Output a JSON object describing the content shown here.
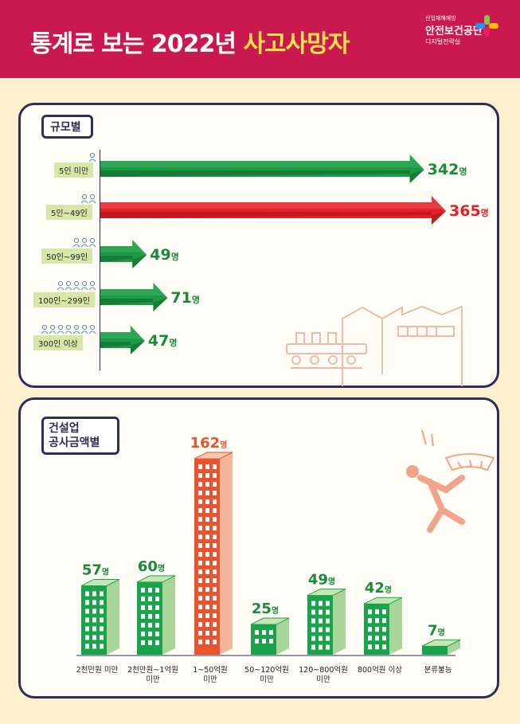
{
  "header": {
    "title_main": "통계로 보는 2022년 ",
    "title_highlight": "사고사망자",
    "logo_top": "산업재해예방",
    "logo_name": "안전보건공단",
    "logo_sub": "디지털전략실"
  },
  "colors": {
    "header": "#c9194e",
    "green": "#1e9a46",
    "red": "#e42128",
    "orange": "#e9542f",
    "navy": "#2b2f5a"
  },
  "icons": {
    "size_section": "person-icon",
    "construction_section": "falling-worker-icon",
    "decoration": "factory-icon"
  },
  "chart_data": [
    {
      "type": "bar",
      "orientation": "horizontal",
      "title": "규모별",
      "categories": [
        "5인 미만",
        "5인~49인",
        "50인~99인",
        "100인~299인",
        "300인 이상"
      ],
      "values": [
        342,
        365,
        49,
        71,
        47
      ],
      "value_labels": [
        "342명",
        "365명",
        "49명",
        "71명",
        "47명"
      ],
      "highlight_index": 1,
      "xlim": [
        0,
        400
      ]
    },
    {
      "type": "bar",
      "orientation": "vertical",
      "title": "건설업 공사금액별",
      "title_lines": [
        "건설업",
        "공사금액별"
      ],
      "categories": [
        "2천만원 미만",
        "2천만원~1억원 미만",
        "1~50억원 미만",
        "50~120억원 미만",
        "120~800억원 미만",
        "800억원 이상",
        "분류불능"
      ],
      "category_lines": [
        [
          "2천만원 미만"
        ],
        [
          "2천만원~1억원",
          "미만"
        ],
        [
          "1~50억원",
          "미만"
        ],
        [
          "50~120억원",
          "미만"
        ],
        [
          "120~800억원",
          "미만"
        ],
        [
          "800억원 이상"
        ],
        [
          "분류불능"
        ]
      ],
      "values": [
        57,
        60,
        162,
        25,
        49,
        42,
        7
      ],
      "value_labels": [
        "57명",
        "60명",
        "162명",
        "25명",
        "49명",
        "42명",
        "7명"
      ],
      "highlight_index": 2,
      "ylim": [
        0,
        180
      ]
    }
  ]
}
